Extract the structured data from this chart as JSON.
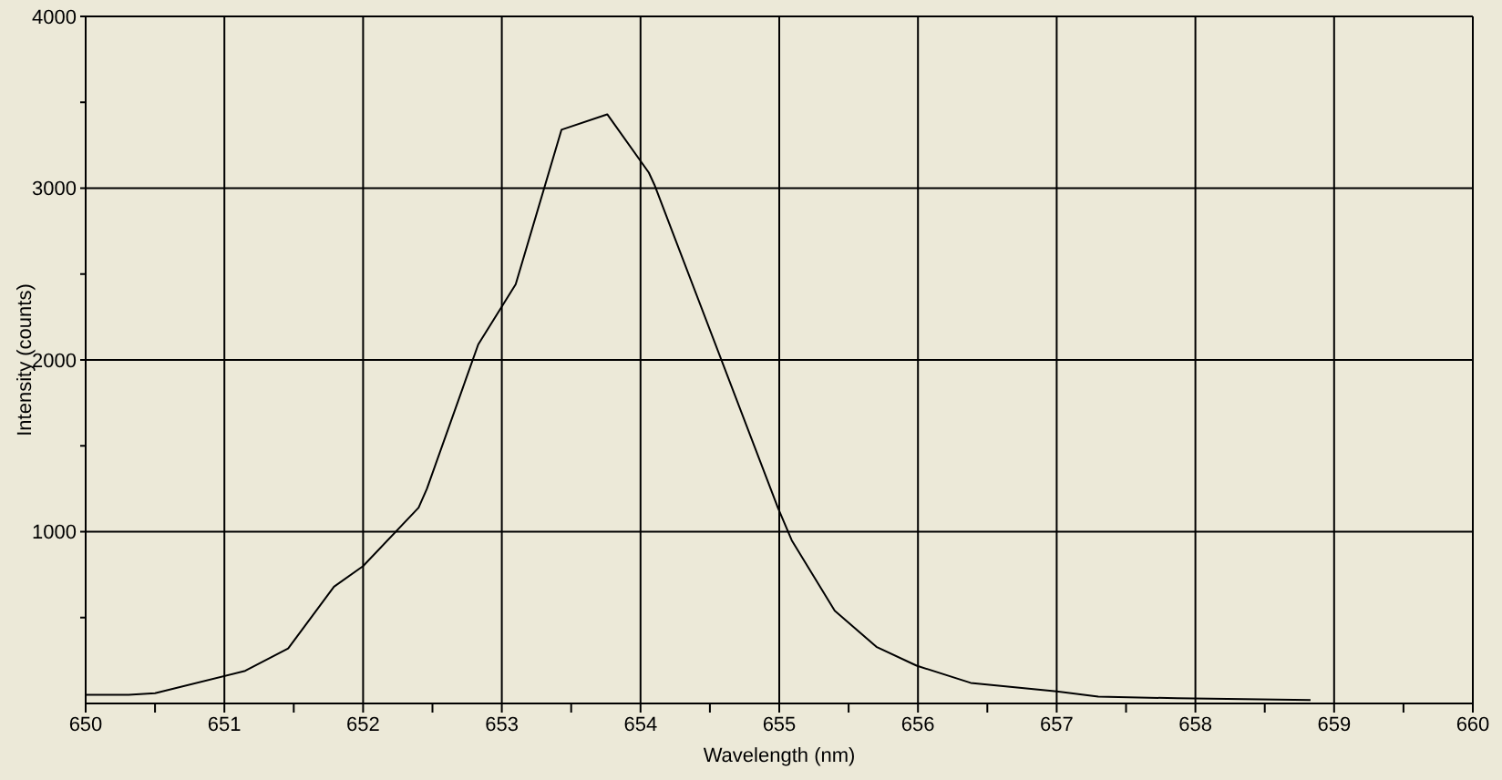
{
  "chart_data": {
    "type": "line",
    "xlabel": "Wavelength (nm)",
    "ylabel": "Intensity (counts)",
    "x": [
      650.0,
      650.31,
      650.5,
      651.15,
      651.46,
      651.79,
      652.0,
      652.4,
      652.46,
      652.83,
      653.1,
      653.43,
      653.76,
      654.06,
      654.1,
      654.99,
      655.09,
      655.4,
      655.7,
      655.99,
      656.38,
      657.0,
      657.3,
      657.87,
      658.83
    ],
    "series": [
      {
        "color": "#000000",
        "values": [
          50,
          50,
          60,
          190,
          320,
          680,
          800,
          1140,
          1250,
          2090,
          2440,
          3340,
          3430,
          3090,
          3020,
          1140,
          950,
          540,
          330,
          220,
          120,
          70,
          40,
          30,
          20
        ]
      }
    ],
    "xlim": [
      650,
      660
    ],
    "xticks": [
      650,
      {
        "value": 650.5,
        "label": null
      },
      651,
      {
        "value": 651.5,
        "label": null
      },
      652,
      {
        "value": 652.5,
        "label": null
      },
      653,
      {
        "value": 653.5,
        "label": null
      },
      654,
      {
        "value": 654.5,
        "label": null
      },
      655,
      {
        "value": 655.5,
        "label": null
      },
      656,
      {
        "value": 656.5,
        "label": null
      },
      657,
      {
        "value": 657.5,
        "label": null
      },
      658,
      {
        "value": 658.5,
        "label": null
      },
      659,
      {
        "value": 659.5,
        "label": null
      },
      660
    ],
    "ylim": [
      0,
      4000
    ],
    "yticks": [
      {
        "value": 500,
        "label": null
      },
      1000,
      {
        "value": 1500,
        "label": null
      },
      2000,
      {
        "value": 2500,
        "label": null
      },
      3000,
      {
        "value": 3500,
        "label": null
      },
      4000
    ],
    "grid": true,
    "legend": false,
    "marker": "none",
    "line_style": "solid"
  }
}
